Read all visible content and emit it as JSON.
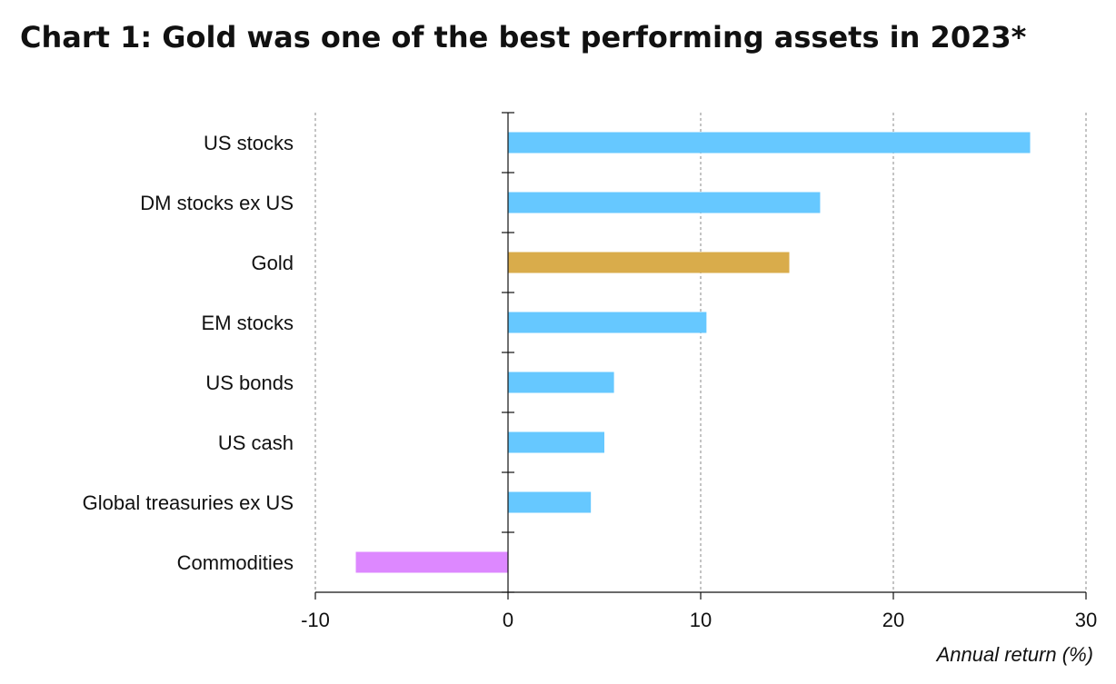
{
  "chart_data": {
    "type": "bar",
    "orientation": "horizontal",
    "title": "Chart 1: Gold was one of the best performing assets in 2023*",
    "xlabel": "Annual return (%)",
    "ylabel": "",
    "xlim": [
      -10,
      30
    ],
    "xticks": [
      -10,
      0,
      10,
      20,
      30
    ],
    "grid": "vertical dashed",
    "categories": [
      "US stocks",
      "DM stocks ex US",
      "Gold",
      "EM stocks",
      "US bonds",
      "US cash",
      "Global treasuries ex US",
      "Commodities"
    ],
    "values": [
      27.1,
      16.2,
      14.6,
      10.3,
      5.5,
      5.0,
      4.3,
      -7.9
    ],
    "colors": [
      "#66c8ff",
      "#66c8ff",
      "#d9ac4b",
      "#66c8ff",
      "#66c8ff",
      "#66c8ff",
      "#66c8ff",
      "#dd88ff"
    ]
  },
  "colors": {
    "axis": "#111111",
    "grid": "#888888"
  }
}
